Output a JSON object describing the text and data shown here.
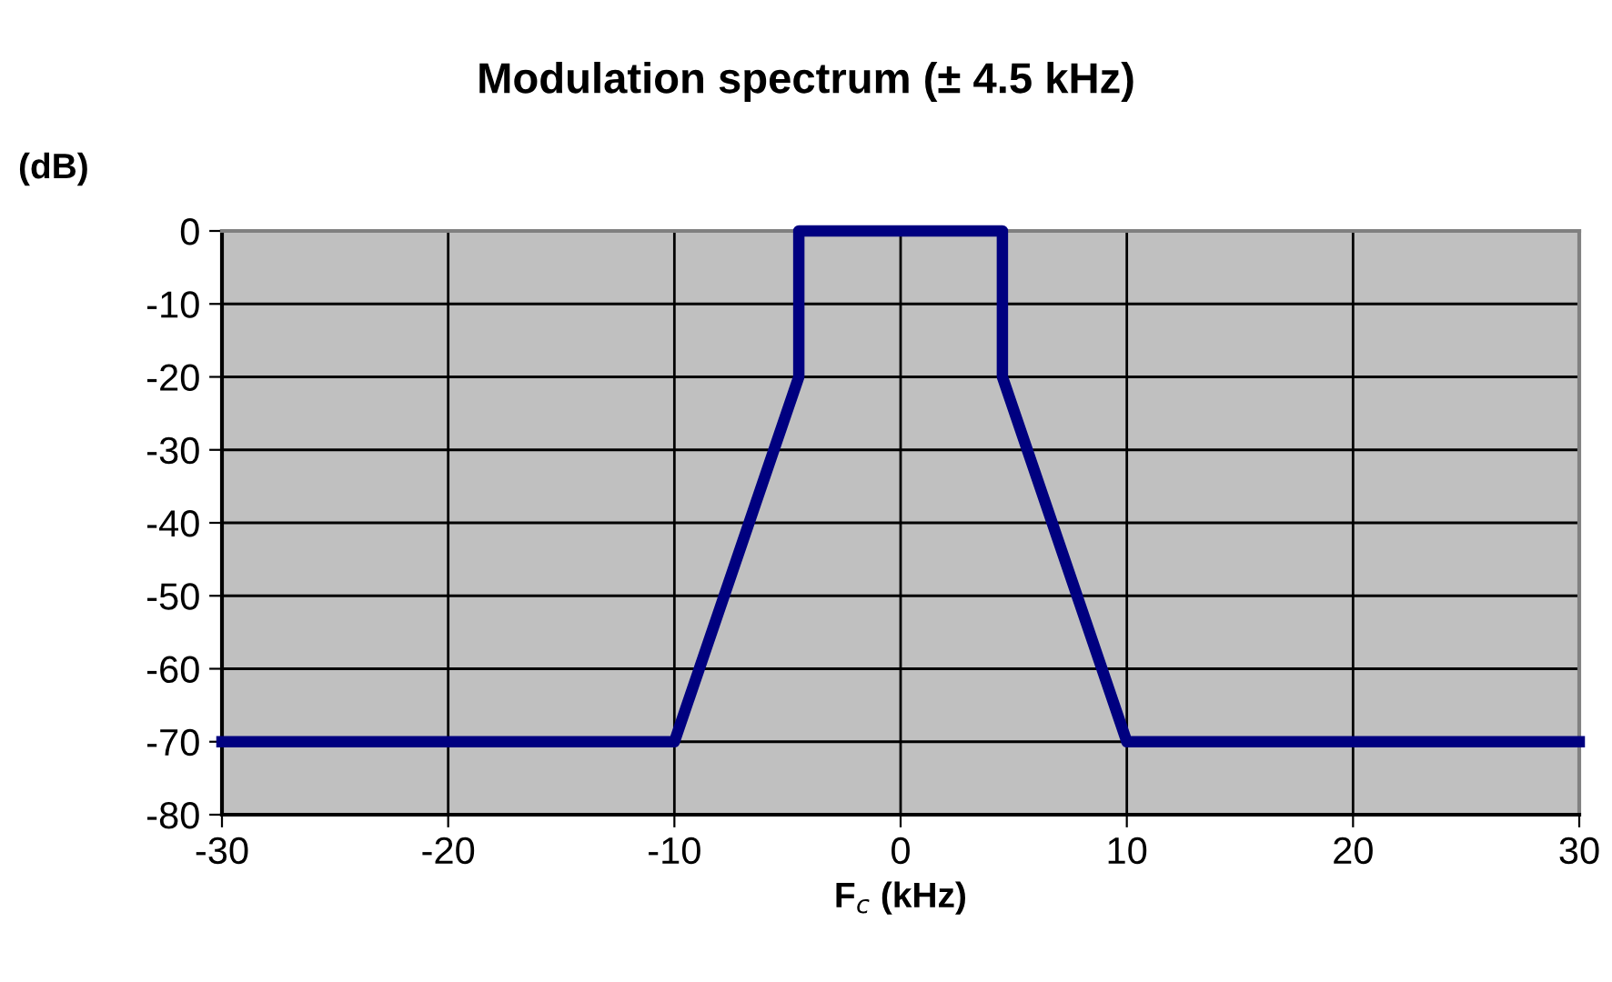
{
  "chart_data": {
    "type": "line",
    "title": "Modulation spectrum (± 4.5 kHz)",
    "xlabel": "F$_{c}$ (kHz)",
    "ylabel": "(dB)",
    "x": [
      -30,
      -10,
      -4.5,
      -4.5,
      4.5,
      4.5,
      10,
      30
    ],
    "series": [
      {
        "color": "#000080",
        "values": [
          -70,
          -70,
          -20,
          0,
          0,
          -20,
          -70,
          -70
        ]
      }
    ],
    "xlim": [
      -30,
      30
    ],
    "xticks": [
      -30,
      -20,
      -10,
      0,
      10,
      20,
      30
    ],
    "ylim": [
      -80,
      0
    ],
    "yticks": [
      -80,
      -70,
      -60,
      -50,
      -40,
      -30,
      -20,
      -10,
      0
    ],
    "grid": true,
    "marker": "none",
    "line_style": "solid",
    "legend": false
  }
}
